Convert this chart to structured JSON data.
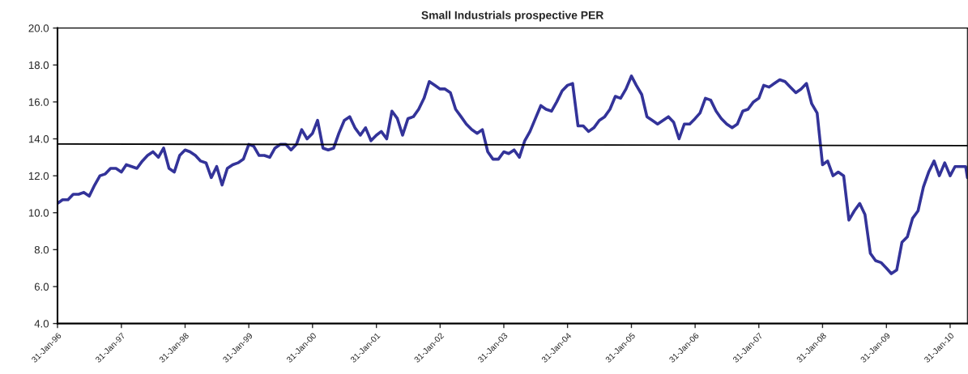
{
  "chart_data": {
    "type": "line",
    "title": "Small Industrials prospective PER",
    "series": [
      {
        "color": "#333399",
        "x": [
          "1996-01-31",
          "1996-02-29",
          "1996-03-31",
          "1996-04-30",
          "1996-05-31",
          "1996-06-30",
          "1996-07-31",
          "1996-08-31",
          "1996-09-30",
          "1996-10-31",
          "1996-11-30",
          "1996-12-31",
          "1997-01-31",
          "1997-02-28",
          "1997-03-31",
          "1997-04-30",
          "1997-05-31",
          "1997-06-30",
          "1997-07-31",
          "1997-08-31",
          "1997-09-30",
          "1997-10-31",
          "1997-11-30",
          "1997-12-31",
          "1998-01-31",
          "1998-02-28",
          "1998-03-31",
          "1998-04-30",
          "1998-05-31",
          "1998-06-30",
          "1998-07-31",
          "1998-08-31",
          "1998-09-30",
          "1998-10-31",
          "1998-11-30",
          "1998-12-31",
          "1999-01-31",
          "1999-02-28",
          "1999-03-31",
          "1999-04-30",
          "1999-05-31",
          "1999-06-30",
          "1999-07-31",
          "1999-08-31",
          "1999-09-30",
          "1999-10-31",
          "1999-11-30",
          "1999-12-31",
          "2000-01-31",
          "2000-02-29",
          "2000-03-31",
          "2000-04-30",
          "2000-05-31",
          "2000-06-30",
          "2000-07-31",
          "2000-08-31",
          "2000-09-30",
          "2000-10-31",
          "2000-11-30",
          "2000-12-31",
          "2001-01-31",
          "2001-02-28",
          "2001-03-31",
          "2001-04-30",
          "2001-05-31",
          "2001-06-30",
          "2001-07-31",
          "2001-08-31",
          "2001-09-30",
          "2001-10-31",
          "2001-11-30",
          "2001-12-31",
          "2002-01-31",
          "2002-02-28",
          "2002-03-31",
          "2002-04-30",
          "2002-05-31",
          "2002-06-30",
          "2002-07-31",
          "2002-08-31",
          "2002-09-30",
          "2002-10-31",
          "2002-11-30",
          "2002-12-31",
          "2003-01-31",
          "2003-02-28",
          "2003-03-31",
          "2003-04-30",
          "2003-05-31",
          "2003-06-30",
          "2003-07-31",
          "2003-08-31",
          "2003-09-30",
          "2003-10-31",
          "2003-11-30",
          "2003-12-31",
          "2004-01-31",
          "2004-02-29",
          "2004-03-31",
          "2004-04-30",
          "2004-05-31",
          "2004-06-30",
          "2004-07-31",
          "2004-08-31",
          "2004-09-30",
          "2004-10-31",
          "2004-11-30",
          "2004-12-31",
          "2005-01-31",
          "2005-02-28",
          "2005-03-31",
          "2005-04-30",
          "2005-05-31",
          "2005-06-30",
          "2005-07-31",
          "2005-08-31",
          "2005-09-30",
          "2005-10-31",
          "2005-11-30",
          "2005-12-31",
          "2006-01-31",
          "2006-02-28",
          "2006-03-31",
          "2006-04-30",
          "2006-05-31",
          "2006-06-30",
          "2006-07-31",
          "2006-08-31",
          "2006-09-30",
          "2006-10-31",
          "2006-11-30",
          "2006-12-31",
          "2007-01-31",
          "2007-02-28",
          "2007-03-31",
          "2007-04-30",
          "2007-05-31",
          "2007-06-30",
          "2007-07-31",
          "2007-08-31",
          "2007-09-30",
          "2007-10-31",
          "2007-11-30",
          "2007-12-31",
          "2008-01-31",
          "2008-02-29",
          "2008-03-31",
          "2008-04-30",
          "2008-05-31",
          "2008-06-30",
          "2008-07-31",
          "2008-08-31",
          "2008-09-30",
          "2008-10-31",
          "2008-11-30",
          "2008-12-31",
          "2009-01-31",
          "2009-02-28",
          "2009-03-31",
          "2009-04-30",
          "2009-05-31",
          "2009-06-30",
          "2009-07-31",
          "2009-08-31",
          "2009-09-30",
          "2009-10-31",
          "2009-11-30",
          "2009-12-31",
          "2010-01-31",
          "2010-02-28",
          "2010-03-31",
          "2010-04-30",
          "2010-05-10"
        ],
        "values": [
          10.5,
          10.7,
          10.7,
          11.0,
          11.0,
          11.1,
          10.9,
          11.5,
          12.0,
          12.1,
          12.4,
          12.4,
          12.2,
          12.6,
          12.5,
          12.4,
          12.8,
          13.1,
          13.3,
          13.0,
          13.5,
          12.4,
          12.2,
          13.1,
          13.4,
          13.3,
          13.1,
          12.8,
          12.7,
          11.9,
          12.5,
          11.5,
          12.4,
          12.6,
          12.7,
          12.9,
          13.7,
          13.6,
          13.1,
          13.1,
          13.0,
          13.5,
          13.7,
          13.7,
          13.4,
          13.7,
          14.5,
          14.0,
          14.3,
          15.0,
          13.5,
          13.4,
          13.5,
          14.3,
          15.0,
          15.2,
          14.6,
          14.2,
          14.6,
          13.9,
          14.2,
          14.4,
          14.0,
          15.5,
          15.1,
          14.2,
          15.1,
          15.2,
          15.6,
          16.2,
          17.1,
          16.9,
          16.7,
          16.7,
          16.5,
          15.6,
          15.2,
          14.8,
          14.5,
          14.3,
          14.5,
          13.3,
          12.9,
          12.9,
          13.3,
          13.2,
          13.4,
          13.0,
          13.9,
          14.4,
          15.1,
          15.8,
          15.6,
          15.5,
          16.0,
          16.6,
          16.9,
          17.0,
          14.7,
          14.7,
          14.4,
          14.6,
          15.0,
          15.2,
          15.6,
          16.3,
          16.2,
          16.7,
          17.4,
          16.9,
          16.4,
          15.2,
          15.0,
          14.8,
          15.0,
          15.2,
          14.9,
          14.0,
          14.8,
          14.8,
          15.1,
          15.4,
          16.2,
          16.1,
          15.5,
          15.1,
          14.8,
          14.6,
          14.8,
          15.5,
          15.6,
          16.0,
          16.2,
          16.9,
          16.8,
          17.0,
          17.2,
          17.1,
          16.8,
          16.5,
          16.7,
          17.0,
          15.9,
          15.4,
          12.6,
          12.8,
          12.0,
          12.2,
          12.0,
          9.6,
          10.1,
          10.5,
          9.9,
          7.8,
          7.4,
          7.3,
          7.0,
          6.7,
          6.9,
          8.4,
          8.7,
          9.7,
          10.1,
          11.4,
          12.2,
          12.8,
          12.0,
          12.7,
          12.0,
          12.5,
          12.5,
          12.5,
          11.9
        ]
      },
      {
        "color": "#000000",
        "x": [
          "1996-01-31",
          "2010-05-10"
        ],
        "values": [
          13.72,
          13.63
        ]
      }
    ],
    "xlim": [
      "1996-01-31",
      "2010-05-10"
    ],
    "xticks": [
      {
        "value": "1996-01-31",
        "label": "31-Jan-96"
      },
      {
        "value": "1997-01-31",
        "label": "31-Jan-97"
      },
      {
        "value": "1998-01-31",
        "label": "31-Jan-98"
      },
      {
        "value": "1999-01-31",
        "label": "31-Jan-99"
      },
      {
        "value": "2000-01-31",
        "label": "31-Jan-00"
      },
      {
        "value": "2001-01-31",
        "label": "31-Jan-01"
      },
      {
        "value": "2002-01-31",
        "label": "31-Jan-02"
      },
      {
        "value": "2003-01-31",
        "label": "31-Jan-03"
      },
      {
        "value": "2004-01-31",
        "label": "31-Jan-04"
      },
      {
        "value": "2005-01-31",
        "label": "31-Jan-05"
      },
      {
        "value": "2006-01-31",
        "label": "31-Jan-06"
      },
      {
        "value": "2007-01-31",
        "label": "31-Jan-07"
      },
      {
        "value": "2008-01-31",
        "label": "31-Jan-08"
      },
      {
        "value": "2009-01-31",
        "label": "31-Jan-09"
      },
      {
        "value": "2010-01-31",
        "label": "31-Jan-10"
      }
    ],
    "ylim": [
      4,
      20
    ],
    "yticks": [
      {
        "value": 4,
        "label": "4.0"
      },
      {
        "value": 6,
        "label": "6.0"
      },
      {
        "value": 8,
        "label": "8.0"
      },
      {
        "value": 10,
        "label": "10.0"
      },
      {
        "value": 12,
        "label": "12.0"
      },
      {
        "value": 14,
        "label": "14.0"
      },
      {
        "value": 16,
        "label": "16.0"
      },
      {
        "value": 18,
        "label": "18.0"
      },
      {
        "value": 20,
        "label": "20.0"
      }
    ],
    "grid": false,
    "legend": false
  }
}
